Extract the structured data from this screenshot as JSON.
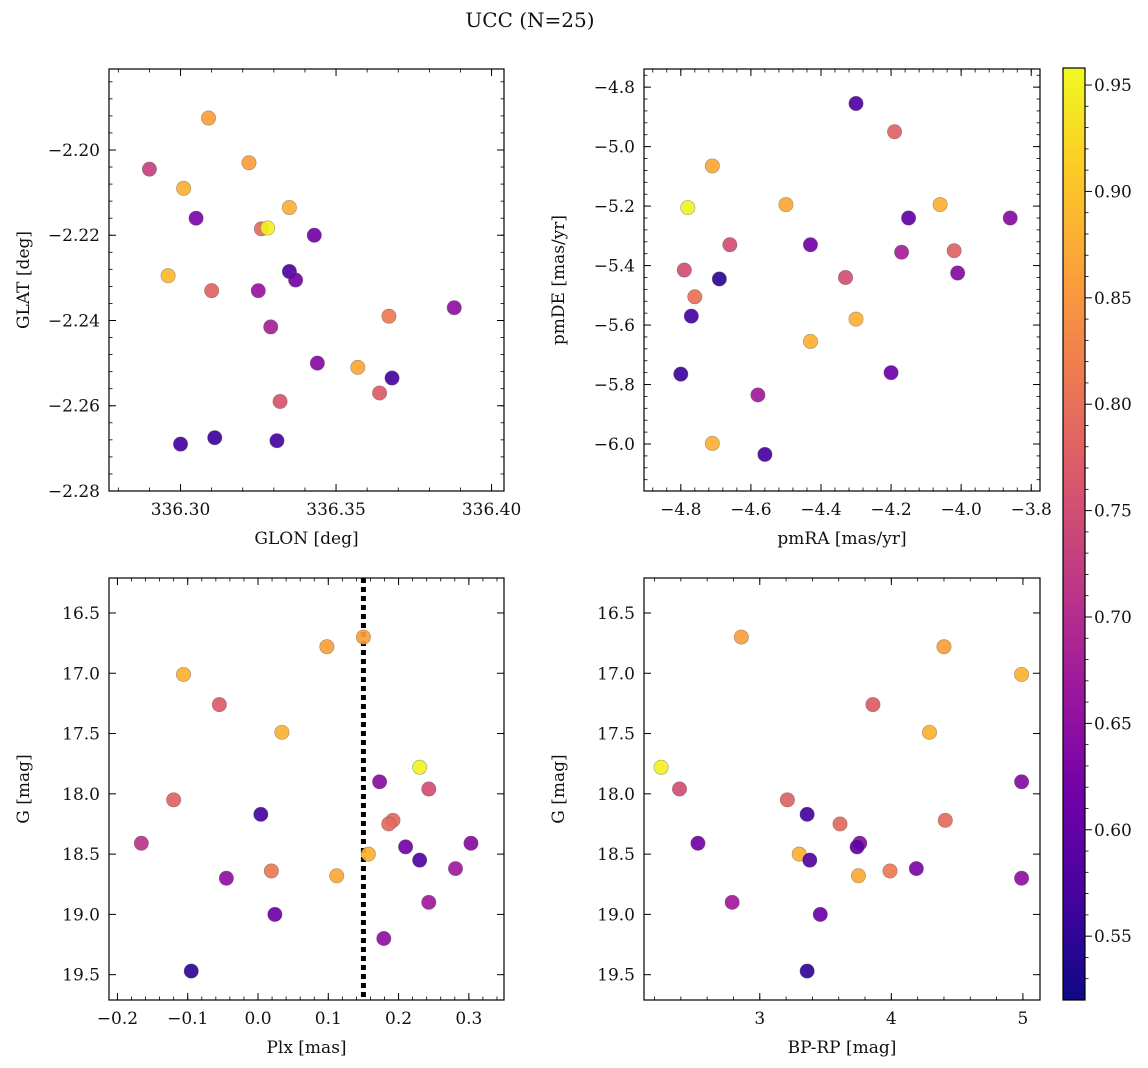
{
  "figure": {
    "title": "UCC (N=25)",
    "colormap_stops": [
      "#0d0887",
      "#46039f",
      "#7201a8",
      "#9c179e",
      "#bd3786",
      "#d8576b",
      "#ed7953",
      "#fb9f3a",
      "#fdca26",
      "#f0f921"
    ]
  },
  "colorbar": {
    "range": [
      0.52,
      0.958
    ],
    "ticks": [
      0.55,
      0.6,
      0.65,
      0.7,
      0.75,
      0.8,
      0.85,
      0.9,
      0.95
    ],
    "tick_labels": [
      "0.55",
      "0.60",
      "0.65",
      "0.70",
      "0.75",
      "0.80",
      "0.85",
      "0.90",
      "0.95"
    ]
  },
  "chart_data": [
    {
      "type": "scatter",
      "xlabel": "GLON [deg]",
      "ylabel": "GLAT [deg]",
      "xlim": [
        336.277,
        336.404
      ],
      "ylim": [
        -2.28,
        -2.181
      ],
      "xticks": [
        336.3,
        336.35,
        336.4
      ],
      "xtick_labels": [
        "336.30",
        "336.35",
        "336.40"
      ],
      "yticks": [
        -2.28,
        -2.26,
        -2.24,
        -2.22,
        -2.2
      ],
      "ytick_labels": [
        "−2.28",
        "−2.26",
        "−2.24",
        "−2.22",
        "−2.20"
      ],
      "y_inverted": false,
      "points": [
        {
          "x": 336.309,
          "y": -2.1925,
          "c": 0.86
        },
        {
          "x": 336.322,
          "y": -2.203,
          "c": 0.86
        },
        {
          "x": 336.29,
          "y": -2.2045,
          "c": 0.73
        },
        {
          "x": 336.301,
          "y": -2.209,
          "c": 0.88
        },
        {
          "x": 336.335,
          "y": -2.2135,
          "c": 0.88
        },
        {
          "x": 336.305,
          "y": -2.216,
          "c": 0.63
        },
        {
          "x": 336.326,
          "y": -2.2185,
          "c": 0.79
        },
        {
          "x": 336.328,
          "y": -2.2183,
          "c": 0.95
        },
        {
          "x": 336.343,
          "y": -2.22,
          "c": 0.62
        },
        {
          "x": 336.296,
          "y": -2.2295,
          "c": 0.89
        },
        {
          "x": 336.335,
          "y": -2.2285,
          "c": 0.58
        },
        {
          "x": 336.337,
          "y": -2.2305,
          "c": 0.62
        },
        {
          "x": 336.31,
          "y": -2.233,
          "c": 0.78
        },
        {
          "x": 336.325,
          "y": -2.233,
          "c": 0.66
        },
        {
          "x": 336.388,
          "y": -2.237,
          "c": 0.65
        },
        {
          "x": 336.367,
          "y": -2.239,
          "c": 0.81
        },
        {
          "x": 336.329,
          "y": -2.2415,
          "c": 0.68
        },
        {
          "x": 336.344,
          "y": -2.25,
          "c": 0.64
        },
        {
          "x": 336.357,
          "y": -2.251,
          "c": 0.87
        },
        {
          "x": 336.368,
          "y": -2.2535,
          "c": 0.57
        },
        {
          "x": 336.364,
          "y": -2.257,
          "c": 0.77
        },
        {
          "x": 336.332,
          "y": -2.259,
          "c": 0.76
        },
        {
          "x": 336.311,
          "y": -2.2675,
          "c": 0.56
        },
        {
          "x": 336.331,
          "y": -2.2682,
          "c": 0.57
        },
        {
          "x": 336.3,
          "y": -2.269,
          "c": 0.57
        }
      ]
    },
    {
      "type": "scatter",
      "xlabel": "pmRA [mas/yr]",
      "ylabel": "pmDE [mas/yr]",
      "xlim": [
        -4.905,
        -3.775
      ],
      "ylim": [
        -6.158,
        -4.739
      ],
      "xticks": [
        -4.8,
        -4.6,
        -4.4,
        -4.2,
        -4.0,
        -3.8
      ],
      "xtick_labels": [
        "−4.8",
        "−4.6",
        "−4.4",
        "−4.2",
        "−4.0",
        "−3.8"
      ],
      "yticks": [
        -6.0,
        -5.8,
        -5.6,
        -5.4,
        -5.2,
        -5.0,
        -4.8
      ],
      "ytick_labels": [
        "−6.0",
        "−5.8",
        "−5.6",
        "−5.4",
        "−5.2",
        "−5.0",
        "−4.8"
      ],
      "y_inverted": false,
      "points": [
        {
          "x": -4.3,
          "y": -4.855,
          "c": 0.58
        },
        {
          "x": -4.19,
          "y": -4.95,
          "c": 0.78
        },
        {
          "x": -4.71,
          "y": -5.065,
          "c": 0.87
        },
        {
          "x": -4.78,
          "y": -5.205,
          "c": 0.95
        },
        {
          "x": -4.5,
          "y": -5.195,
          "c": 0.87
        },
        {
          "x": -4.06,
          "y": -5.195,
          "c": 0.88
        },
        {
          "x": -4.15,
          "y": -5.24,
          "c": 0.6
        },
        {
          "x": -3.86,
          "y": -5.24,
          "c": 0.64
        },
        {
          "x": -4.66,
          "y": -5.33,
          "c": 0.75
        },
        {
          "x": -4.43,
          "y": -5.33,
          "c": 0.62
        },
        {
          "x": -4.17,
          "y": -5.355,
          "c": 0.68
        },
        {
          "x": -4.02,
          "y": -5.35,
          "c": 0.78
        },
        {
          "x": -4.79,
          "y": -5.415,
          "c": 0.75
        },
        {
          "x": -4.33,
          "y": -5.44,
          "c": 0.75
        },
        {
          "x": -4.01,
          "y": -5.425,
          "c": 0.64
        },
        {
          "x": -4.69,
          "y": -5.445,
          "c": 0.55
        },
        {
          "x": -4.76,
          "y": -5.505,
          "c": 0.8
        },
        {
          "x": -4.77,
          "y": -5.57,
          "c": 0.57
        },
        {
          "x": -4.3,
          "y": -5.58,
          "c": 0.88
        },
        {
          "x": -4.43,
          "y": -5.655,
          "c": 0.88
        },
        {
          "x": -4.8,
          "y": -5.765,
          "c": 0.56
        },
        {
          "x": -4.2,
          "y": -5.76,
          "c": 0.61
        },
        {
          "x": -4.58,
          "y": -5.835,
          "c": 0.67
        },
        {
          "x": -4.71,
          "y": -5.998,
          "c": 0.88
        },
        {
          "x": -4.56,
          "y": -6.035,
          "c": 0.57
        }
      ]
    },
    {
      "type": "scatter",
      "xlabel": "Plx [mas]",
      "ylabel": "G [mag]",
      "xlim": [
        -0.212,
        0.35
      ],
      "ylim": [
        19.71,
        16.21
      ],
      "xticks": [
        -0.2,
        -0.1,
        0.0,
        0.1,
        0.2,
        0.3
      ],
      "xtick_labels": [
        "−0.2",
        "−0.1",
        "0.0",
        "0.1",
        "0.2",
        "0.3"
      ],
      "yticks": [
        16.5,
        17.0,
        17.5,
        18.0,
        18.5,
        19.0,
        19.5
      ],
      "ytick_labels": [
        "16.5",
        "17.0",
        "17.5",
        "18.0",
        "18.5",
        "19.0",
        "19.5"
      ],
      "y_inverted": true,
      "vline": {
        "x": 0.15,
        "style": "dotted"
      },
      "points": [
        {
          "x": 0.15,
          "y": 16.7,
          "c": 0.86
        },
        {
          "x": 0.098,
          "y": 16.78,
          "c": 0.86
        },
        {
          "x": -0.106,
          "y": 17.01,
          "c": 0.88
        },
        {
          "x": -0.055,
          "y": 17.26,
          "c": 0.77
        },
        {
          "x": 0.034,
          "y": 17.49,
          "c": 0.88
        },
        {
          "x": 0.23,
          "y": 17.78,
          "c": 0.95
        },
        {
          "x": 0.173,
          "y": 17.9,
          "c": 0.64
        },
        {
          "x": 0.243,
          "y": 17.96,
          "c": 0.75
        },
        {
          "x": -0.12,
          "y": 18.05,
          "c": 0.78
        },
        {
          "x": 0.004,
          "y": 18.17,
          "c": 0.57
        },
        {
          "x": 0.192,
          "y": 18.22,
          "c": 0.79
        },
        {
          "x": 0.186,
          "y": 18.25,
          "c": 0.79
        },
        {
          "x": -0.166,
          "y": 18.41,
          "c": 0.71
        },
        {
          "x": 0.303,
          "y": 18.41,
          "c": 0.64
        },
        {
          "x": 0.21,
          "y": 18.44,
          "c": 0.62
        },
        {
          "x": 0.157,
          "y": 18.5,
          "c": 0.88
        },
        {
          "x": 0.23,
          "y": 18.55,
          "c": 0.58
        },
        {
          "x": 0.281,
          "y": 18.62,
          "c": 0.67
        },
        {
          "x": 0.019,
          "y": 18.64,
          "c": 0.81
        },
        {
          "x": 0.112,
          "y": 18.68,
          "c": 0.87
        },
        {
          "x": -0.045,
          "y": 18.7,
          "c": 0.65
        },
        {
          "x": 0.243,
          "y": 18.9,
          "c": 0.67
        },
        {
          "x": 0.024,
          "y": 19.0,
          "c": 0.61
        },
        {
          "x": 0.179,
          "y": 19.2,
          "c": 0.65
        },
        {
          "x": -0.095,
          "y": 19.47,
          "c": 0.55
        }
      ]
    },
    {
      "type": "scatter",
      "xlabel": "BP-RP [mag]",
      "ylabel": "G [mag]",
      "xlim": [
        2.12,
        5.13
      ],
      "ylim": [
        19.71,
        16.21
      ],
      "xticks": [
        3,
        4,
        5
      ],
      "xtick_labels": [
        "3",
        "4",
        "5"
      ],
      "yticks": [
        16.5,
        17.0,
        17.5,
        18.0,
        18.5,
        19.0,
        19.5
      ],
      "ytick_labels": [
        "16.5",
        "17.0",
        "17.5",
        "18.0",
        "18.5",
        "19.0",
        "19.5"
      ],
      "y_inverted": true,
      "points": [
        {
          "x": 2.86,
          "y": 16.7,
          "c": 0.86
        },
        {
          "x": 4.4,
          "y": 16.78,
          "c": 0.86
        },
        {
          "x": 4.99,
          "y": 17.01,
          "c": 0.88
        },
        {
          "x": 3.86,
          "y": 17.26,
          "c": 0.77
        },
        {
          "x": 4.29,
          "y": 17.49,
          "c": 0.88
        },
        {
          "x": 2.25,
          "y": 17.78,
          "c": 0.95
        },
        {
          "x": 4.99,
          "y": 17.9,
          "c": 0.64
        },
        {
          "x": 2.39,
          "y": 17.96,
          "c": 0.75
        },
        {
          "x": 3.21,
          "y": 18.05,
          "c": 0.78
        },
        {
          "x": 3.36,
          "y": 18.17,
          "c": 0.57
        },
        {
          "x": 4.41,
          "y": 18.22,
          "c": 0.79
        },
        {
          "x": 3.61,
          "y": 18.25,
          "c": 0.79
        },
        {
          "x": 2.53,
          "y": 18.41,
          "c": 0.62
        },
        {
          "x": 3.76,
          "y": 18.41,
          "c": 0.64
        },
        {
          "x": 3.74,
          "y": 18.44,
          "c": 0.6
        },
        {
          "x": 3.3,
          "y": 18.5,
          "c": 0.88
        },
        {
          "x": 3.38,
          "y": 18.55,
          "c": 0.58
        },
        {
          "x": 4.19,
          "y": 18.62,
          "c": 0.63
        },
        {
          "x": 3.99,
          "y": 18.64,
          "c": 0.81
        },
        {
          "x": 3.75,
          "y": 18.68,
          "c": 0.87
        },
        {
          "x": 4.99,
          "y": 18.7,
          "c": 0.65
        },
        {
          "x": 2.79,
          "y": 18.9,
          "c": 0.67
        },
        {
          "x": 3.46,
          "y": 19.0,
          "c": 0.61
        },
        {
          "x": 3.36,
          "y": 19.47,
          "c": 0.55
        }
      ]
    }
  ]
}
